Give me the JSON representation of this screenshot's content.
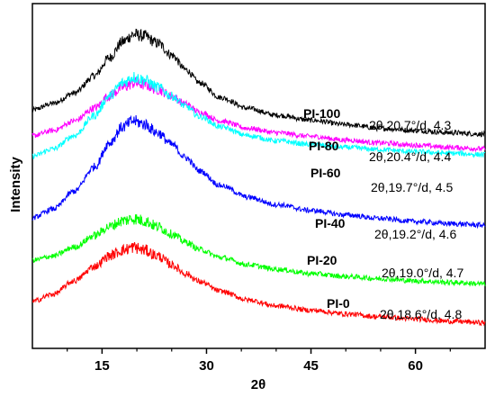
{
  "chart_data": {
    "type": "line",
    "title": "",
    "xlabel": "2θ",
    "ylabel": "Intensity",
    "xlim": [
      5,
      70
    ],
    "xticks": [
      15,
      30,
      45,
      60
    ],
    "x_minor_ticks": [
      10,
      20,
      25,
      35,
      40,
      50,
      55,
      65
    ],
    "yticks_shown": false,
    "grid": false,
    "legend": "none",
    "series": [
      {
        "name": "PI-100",
        "color": "#000000",
        "annotation": "2θ,20.7°/d, 4.3",
        "points": [
          [
            5,
            0.75
          ],
          [
            8,
            0.84
          ],
          [
            11,
            0.98
          ],
          [
            14,
            1.22
          ],
          [
            16,
            1.46
          ],
          [
            18,
            1.68
          ],
          [
            19.5,
            1.78
          ],
          [
            21,
            1.76
          ],
          [
            23,
            1.66
          ],
          [
            25,
            1.5
          ],
          [
            27,
            1.3
          ],
          [
            29,
            1.12
          ],
          [
            32,
            0.92
          ],
          [
            36,
            0.77
          ],
          [
            40,
            0.68
          ],
          [
            45,
            0.61
          ],
          [
            50,
            0.55
          ],
          [
            55,
            0.5
          ],
          [
            60,
            0.47
          ],
          [
            65,
            0.44
          ],
          [
            70,
            0.42
          ]
        ]
      },
      {
        "name": "PI-80",
        "color": "#ff00ff",
        "annotation": "2θ,20.4°/d, 4.4",
        "points": [
          [
            5,
            0.4
          ],
          [
            8,
            0.47
          ],
          [
            11,
            0.6
          ],
          [
            14,
            0.78
          ],
          [
            16,
            0.94
          ],
          [
            18,
            1.06
          ],
          [
            19.5,
            1.12
          ],
          [
            21,
            1.1
          ],
          [
            23,
            1.03
          ],
          [
            25,
            0.94
          ],
          [
            27,
            0.83
          ],
          [
            29,
            0.72
          ],
          [
            32,
            0.6
          ],
          [
            36,
            0.5
          ],
          [
            40,
            0.44
          ],
          [
            45,
            0.39
          ],
          [
            50,
            0.34
          ],
          [
            55,
            0.3
          ],
          [
            60,
            0.27
          ],
          [
            65,
            0.24
          ],
          [
            70,
            0.22
          ]
        ]
      },
      {
        "name": "PI-60",
        "color": "#00ffff",
        "annotation": "2θ,19.7°/d, 4.5",
        "points": [
          [
            5,
            0.12
          ],
          [
            8,
            0.22
          ],
          [
            11,
            0.4
          ],
          [
            14,
            0.68
          ],
          [
            16,
            0.94
          ],
          [
            18,
            1.12
          ],
          [
            19.5,
            1.2
          ],
          [
            21,
            1.16
          ],
          [
            23,
            1.06
          ],
          [
            25,
            0.94
          ],
          [
            27,
            0.8
          ],
          [
            29,
            0.66
          ],
          [
            32,
            0.52
          ],
          [
            36,
            0.4
          ],
          [
            40,
            0.33
          ],
          [
            45,
            0.28
          ],
          [
            50,
            0.24
          ],
          [
            55,
            0.21
          ],
          [
            60,
            0.18
          ],
          [
            65,
            0.16
          ],
          [
            70,
            0.14
          ]
        ]
      },
      {
        "name": "PI-40",
        "color": "#0000ff",
        "annotation": "2θ,19.2°/d, 4.6",
        "points": [
          [
            5,
            -0.72
          ],
          [
            8,
            -0.6
          ],
          [
            11,
            -0.36
          ],
          [
            14,
            -0.02
          ],
          [
            16,
            0.3
          ],
          [
            18,
            0.52
          ],
          [
            19.5,
            0.6
          ],
          [
            21,
            0.56
          ],
          [
            23,
            0.44
          ],
          [
            25,
            0.28
          ],
          [
            27,
            0.1
          ],
          [
            29,
            -0.08
          ],
          [
            32,
            -0.28
          ],
          [
            36,
            -0.44
          ],
          [
            40,
            -0.54
          ],
          [
            45,
            -0.62
          ],
          [
            50,
            -0.68
          ],
          [
            55,
            -0.73
          ],
          [
            60,
            -0.77
          ],
          [
            65,
            -0.8
          ],
          [
            70,
            -0.82
          ]
        ]
      },
      {
        "name": "PI-20",
        "color": "#00ff00",
        "annotation": "2θ,19.0°/d, 4.7",
        "points": [
          [
            5,
            -1.3
          ],
          [
            8,
            -1.24
          ],
          [
            11,
            -1.12
          ],
          [
            14,
            -0.96
          ],
          [
            16,
            -0.84
          ],
          [
            18,
            -0.76
          ],
          [
            19.5,
            -0.73
          ],
          [
            21,
            -0.76
          ],
          [
            23,
            -0.84
          ],
          [
            25,
            -0.94
          ],
          [
            27,
            -1.05
          ],
          [
            29,
            -1.15
          ],
          [
            32,
            -1.26
          ],
          [
            36,
            -1.36
          ],
          [
            40,
            -1.42
          ],
          [
            45,
            -1.48
          ],
          [
            50,
            -1.52
          ],
          [
            55,
            -1.55
          ],
          [
            60,
            -1.58
          ],
          [
            65,
            -1.6
          ],
          [
            70,
            -1.62
          ]
        ]
      },
      {
        "name": "PI-0",
        "color": "#ff0000",
        "annotation": "2θ,18.6°/d, 4.8",
        "points": [
          [
            5,
            -1.86
          ],
          [
            8,
            -1.76
          ],
          [
            11,
            -1.58
          ],
          [
            14,
            -1.38
          ],
          [
            16,
            -1.24
          ],
          [
            18,
            -1.16
          ],
          [
            19.5,
            -1.12
          ],
          [
            21,
            -1.16
          ],
          [
            23,
            -1.24
          ],
          [
            25,
            -1.36
          ],
          [
            27,
            -1.48
          ],
          [
            29,
            -1.59
          ],
          [
            32,
            -1.72
          ],
          [
            36,
            -1.84
          ],
          [
            40,
            -1.92
          ],
          [
            45,
            -1.98
          ],
          [
            50,
            -2.03
          ],
          [
            55,
            -2.07
          ],
          [
            60,
            -2.1
          ],
          [
            65,
            -2.13
          ],
          [
            70,
            -2.15
          ]
        ]
      }
    ]
  }
}
